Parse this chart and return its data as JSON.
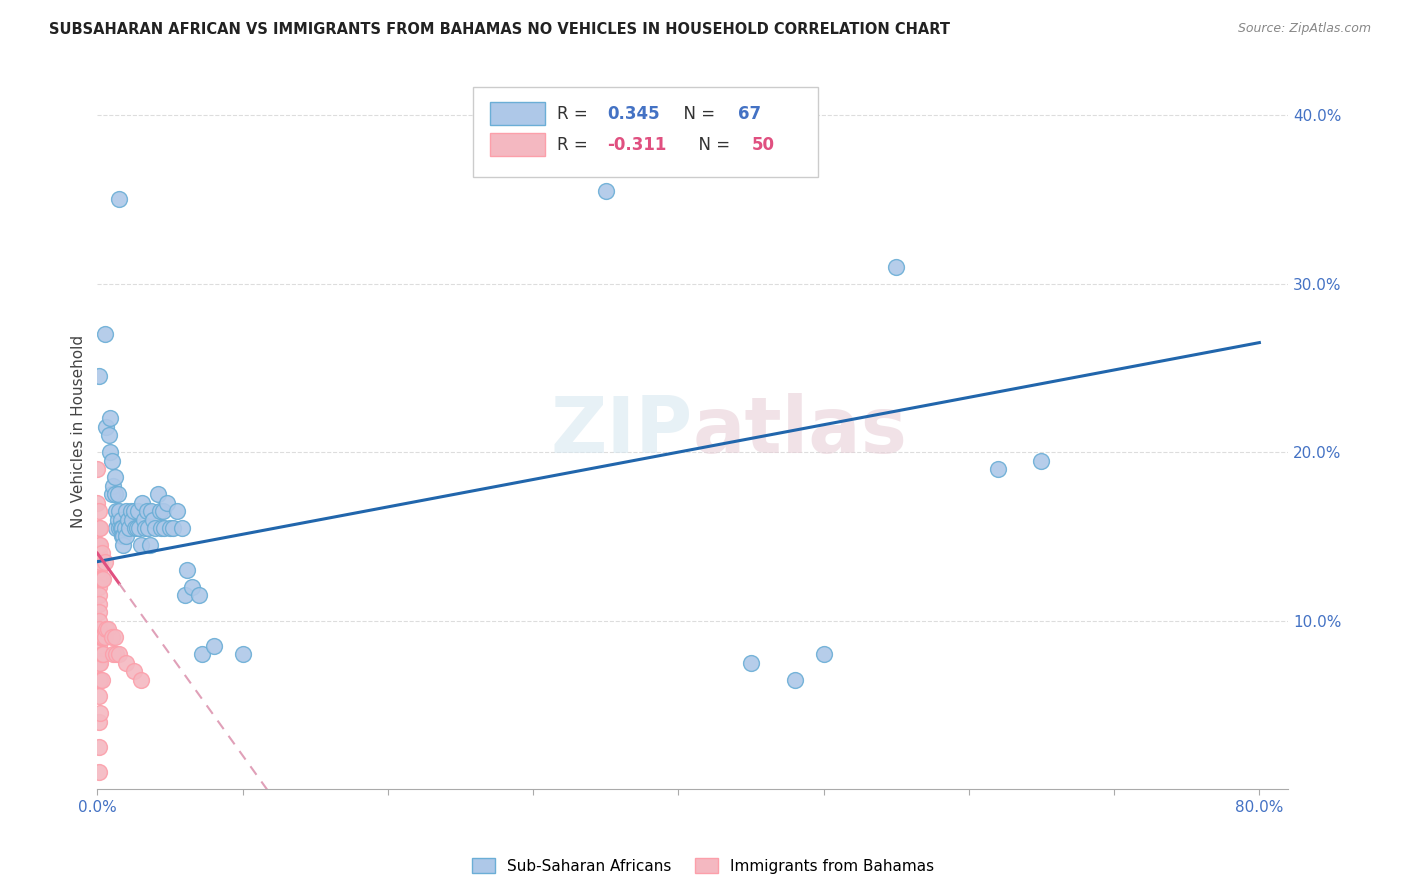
{
  "title": "SUBSAHARAN AFRICAN VS IMMIGRANTS FROM BAHAMAS NO VEHICLES IN HOUSEHOLD CORRELATION CHART",
  "source": "Source: ZipAtlas.com",
  "ylabel": "No Vehicles in Household",
  "watermark": "ZIPatlas",
  "blue_scatter": [
    [
      0.001,
      0.245
    ],
    [
      0.005,
      0.27
    ],
    [
      0.006,
      0.215
    ],
    [
      0.008,
      0.21
    ],
    [
      0.009,
      0.22
    ],
    [
      0.009,
      0.2
    ],
    [
      0.01,
      0.195
    ],
    [
      0.01,
      0.175
    ],
    [
      0.011,
      0.18
    ],
    [
      0.012,
      0.185
    ],
    [
      0.012,
      0.175
    ],
    [
      0.013,
      0.165
    ],
    [
      0.013,
      0.155
    ],
    [
      0.014,
      0.175
    ],
    [
      0.014,
      0.16
    ],
    [
      0.015,
      0.165
    ],
    [
      0.015,
      0.155
    ],
    [
      0.016,
      0.16
    ],
    [
      0.016,
      0.155
    ],
    [
      0.017,
      0.155
    ],
    [
      0.017,
      0.15
    ],
    [
      0.018,
      0.15
    ],
    [
      0.018,
      0.145
    ],
    [
      0.019,
      0.155
    ],
    [
      0.02,
      0.165
    ],
    [
      0.02,
      0.15
    ],
    [
      0.021,
      0.16
    ],
    [
      0.022,
      0.155
    ],
    [
      0.023,
      0.165
    ],
    [
      0.024,
      0.16
    ],
    [
      0.025,
      0.165
    ],
    [
      0.026,
      0.155
    ],
    [
      0.027,
      0.155
    ],
    [
      0.028,
      0.165
    ],
    [
      0.029,
      0.155
    ],
    [
      0.03,
      0.145
    ],
    [
      0.031,
      0.17
    ],
    [
      0.032,
      0.16
    ],
    [
      0.033,
      0.155
    ],
    [
      0.034,
      0.165
    ],
    [
      0.035,
      0.155
    ],
    [
      0.036,
      0.145
    ],
    [
      0.037,
      0.165
    ],
    [
      0.038,
      0.16
    ],
    [
      0.04,
      0.155
    ],
    [
      0.042,
      0.175
    ],
    [
      0.043,
      0.165
    ],
    [
      0.044,
      0.155
    ],
    [
      0.045,
      0.165
    ],
    [
      0.046,
      0.155
    ],
    [
      0.048,
      0.17
    ],
    [
      0.05,
      0.155
    ],
    [
      0.052,
      0.155
    ],
    [
      0.055,
      0.165
    ],
    [
      0.058,
      0.155
    ],
    [
      0.06,
      0.115
    ],
    [
      0.062,
      0.13
    ],
    [
      0.065,
      0.12
    ],
    [
      0.07,
      0.115
    ],
    [
      0.072,
      0.08
    ],
    [
      0.08,
      0.085
    ],
    [
      0.1,
      0.08
    ],
    [
      0.35,
      0.355
    ],
    [
      0.015,
      0.35
    ],
    [
      0.45,
      0.075
    ],
    [
      0.48,
      0.065
    ],
    [
      0.5,
      0.08
    ],
    [
      0.55,
      0.31
    ],
    [
      0.62,
      0.19
    ],
    [
      0.65,
      0.195
    ]
  ],
  "pink_scatter": [
    [
      0.0,
      0.19
    ],
    [
      0.0,
      0.17
    ],
    [
      0.001,
      0.165
    ],
    [
      0.001,
      0.155
    ],
    [
      0.001,
      0.145
    ],
    [
      0.001,
      0.14
    ],
    [
      0.001,
      0.135
    ],
    [
      0.001,
      0.13
    ],
    [
      0.001,
      0.125
    ],
    [
      0.001,
      0.12
    ],
    [
      0.001,
      0.115
    ],
    [
      0.001,
      0.11
    ],
    [
      0.001,
      0.105
    ],
    [
      0.001,
      0.1
    ],
    [
      0.001,
      0.095
    ],
    [
      0.001,
      0.085
    ],
    [
      0.001,
      0.075
    ],
    [
      0.001,
      0.065
    ],
    [
      0.001,
      0.055
    ],
    [
      0.001,
      0.04
    ],
    [
      0.001,
      0.025
    ],
    [
      0.001,
      0.01
    ],
    [
      0.002,
      0.155
    ],
    [
      0.002,
      0.145
    ],
    [
      0.002,
      0.135
    ],
    [
      0.002,
      0.125
    ],
    [
      0.002,
      0.09
    ],
    [
      0.002,
      0.075
    ],
    [
      0.002,
      0.065
    ],
    [
      0.002,
      0.045
    ],
    [
      0.003,
      0.14
    ],
    [
      0.003,
      0.125
    ],
    [
      0.003,
      0.09
    ],
    [
      0.003,
      0.08
    ],
    [
      0.003,
      0.065
    ],
    [
      0.004,
      0.125
    ],
    [
      0.004,
      0.09
    ],
    [
      0.004,
      0.08
    ],
    [
      0.005,
      0.135
    ],
    [
      0.005,
      0.09
    ],
    [
      0.006,
      0.095
    ],
    [
      0.007,
      0.095
    ],
    [
      0.01,
      0.09
    ],
    [
      0.011,
      0.08
    ],
    [
      0.012,
      0.09
    ],
    [
      0.013,
      0.08
    ],
    [
      0.015,
      0.08
    ],
    [
      0.02,
      0.075
    ],
    [
      0.025,
      0.07
    ],
    [
      0.03,
      0.065
    ]
  ],
  "blue_trend_x0": 0.0,
  "blue_trend_x1": 0.8,
  "blue_trend_y0": 0.135,
  "blue_trend_y1": 0.265,
  "pink_trend_solid_x0": 0.0,
  "pink_trend_solid_x1": 0.015,
  "pink_trend_y0": 0.14,
  "pink_trend_slope": -1.2,
  "pink_trend_dashed_x1": 0.14,
  "xlim": [
    0.0,
    0.82
  ],
  "ylim": [
    0.0,
    0.425
  ],
  "background_color": "#ffffff",
  "grid_color": "#dddddd",
  "blue_face": "#aec8e8",
  "blue_edge": "#6baed6",
  "pink_face": "#f4b8c1",
  "pink_edge": "#fc9faa",
  "trend_blue": "#2166ac",
  "trend_pink_solid": "#e05080",
  "trend_pink_dashed": "#e0a0b8",
  "legend_series": [
    "Sub-Saharan Africans",
    "Immigrants from Bahamas"
  ]
}
